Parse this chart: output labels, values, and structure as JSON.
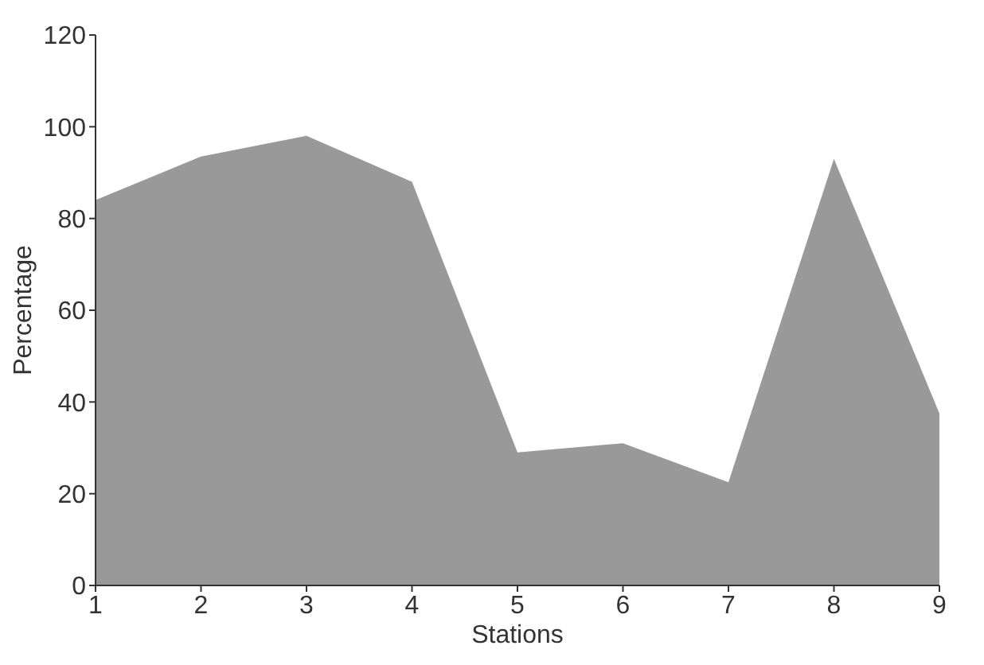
{
  "chart_data": {
    "type": "area",
    "xlabel": "Stations",
    "ylabel": "Percentage",
    "categories": [
      "1",
      "2",
      "3",
      "4",
      "5",
      "6",
      "7",
      "8",
      "9"
    ],
    "values": [
      84,
      93.5,
      98,
      88,
      29,
      31,
      22.5,
      93,
      37.5
    ],
    "color": "#999999",
    "ylim": [
      0,
      120
    ],
    "yticks": [
      0,
      20,
      40,
      60,
      80,
      100,
      120
    ]
  }
}
